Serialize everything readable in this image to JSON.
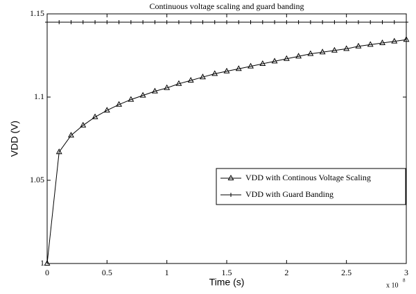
{
  "chart_data": {
    "type": "line",
    "title": "Continuous voltage scaling and guard banding",
    "xlabel": "Time (s)",
    "ylabel": "VDD (V)",
    "x_multiplier": "x 10",
    "x_multiplier_exponent": "8",
    "x": [
      0,
      0.1,
      0.2,
      0.3,
      0.4,
      0.5,
      0.6,
      0.7,
      0.8,
      0.9,
      1.0,
      1.1,
      1.2,
      1.3,
      1.4,
      1.5,
      1.6,
      1.7,
      1.8,
      1.9,
      2.0,
      2.1,
      2.2,
      2.3,
      2.4,
      2.5,
      2.6,
      2.7,
      2.8,
      2.9,
      3.0
    ],
    "series": [
      {
        "name": "VDD with Continous Voltage Scaling",
        "color": "#000000",
        "marker": "triangle",
        "values": [
          1.0,
          1.067,
          1.077,
          1.083,
          1.088,
          1.092,
          1.0955,
          1.0985,
          1.101,
          1.1035,
          1.1055,
          1.108,
          1.11,
          1.112,
          1.114,
          1.1155,
          1.117,
          1.1185,
          1.12,
          1.1215,
          1.123,
          1.1245,
          1.126,
          1.127,
          1.128,
          1.129,
          1.1305,
          1.1315,
          1.1325,
          1.1335,
          1.1345
        ]
      },
      {
        "name": "VDD with Guard Banding",
        "color": "#000000",
        "marker": "plus",
        "values": [
          1.145,
          1.145,
          1.145,
          1.145,
          1.145,
          1.145,
          1.145,
          1.145,
          1.145,
          1.145,
          1.145,
          1.145,
          1.145,
          1.145,
          1.145,
          1.145,
          1.145,
          1.145,
          1.145,
          1.145,
          1.145,
          1.145,
          1.145,
          1.145,
          1.145,
          1.145,
          1.145,
          1.145,
          1.145,
          1.145,
          1.145
        ]
      }
    ],
    "xlim": [
      0,
      3
    ],
    "xticks": [
      0,
      0.5,
      1,
      1.5,
      2,
      2.5,
      3
    ],
    "ylim": [
      1,
      1.15
    ],
    "yticks": [
      1,
      1.05,
      1.1,
      1.15
    ],
    "grid": false,
    "legend": "lower right"
  }
}
